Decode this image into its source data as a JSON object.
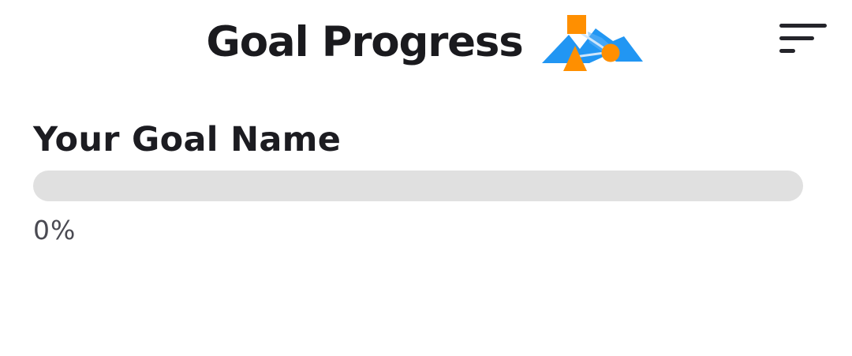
{
  "header": {
    "title": "Goal Progress",
    "logo_icon": "mountain-shapes-logo-icon",
    "menu_icon": "hamburger-menu-icon"
  },
  "goal": {
    "name": "Your Goal Name",
    "progress_fraction": 0,
    "progress_text": "0%"
  },
  "colors": {
    "accent_blue": "#2196f3",
    "accent_orange": "#ff8f00",
    "track": "#e0e0e0",
    "text_dark": "#1a1a1e",
    "text_muted": "#4a4a52"
  }
}
